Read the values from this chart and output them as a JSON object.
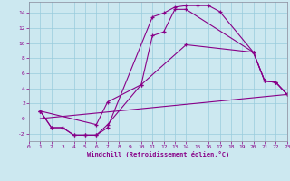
{
  "background_color": "#cce8f0",
  "line_color": "#880088",
  "grid_color": "#99ccdd",
  "xlim": [
    0,
    23
  ],
  "ylim": [
    -3,
    15.5
  ],
  "xticks": [
    0,
    1,
    2,
    3,
    4,
    5,
    6,
    7,
    8,
    9,
    10,
    11,
    12,
    13,
    14,
    15,
    16,
    17,
    18,
    19,
    20,
    21,
    22,
    23
  ],
  "yticks": [
    -2,
    0,
    2,
    4,
    6,
    8,
    10,
    12,
    14
  ],
  "xlabel": "Windchill (Refroidissement éolien,°C)",
  "line1_x": [
    1,
    2,
    3,
    4,
    5,
    6,
    7,
    11,
    12,
    13,
    14,
    15,
    16,
    17,
    20,
    21,
    22,
    23
  ],
  "line1_y": [
    1,
    -1.2,
    -1.2,
    -2.2,
    -2.2,
    -2.2,
    -1.2,
    13.5,
    14,
    14.8,
    15.0,
    15.0,
    15.0,
    14.2,
    8.8,
    5.0,
    4.8,
    3.2
  ],
  "line2_x": [
    1,
    2,
    3,
    4,
    5,
    6,
    7,
    10,
    11,
    12,
    13,
    14,
    20,
    21,
    22,
    23
  ],
  "line2_y": [
    1,
    -1.2,
    -1.2,
    -2.2,
    -2.2,
    -2.2,
    -0.8,
    4.5,
    11.0,
    11.5,
    14.5,
    14.5,
    8.8,
    5.0,
    4.8,
    3.2
  ],
  "line3_x": [
    1,
    6,
    7,
    10,
    14,
    20,
    21,
    22,
    23
  ],
  "line3_y": [
    1,
    -0.8,
    2.2,
    4.5,
    9.8,
    8.8,
    5.0,
    4.8,
    3.2
  ],
  "line4_x": [
    1,
    23
  ],
  "line4_y": [
    0.0,
    3.2
  ]
}
